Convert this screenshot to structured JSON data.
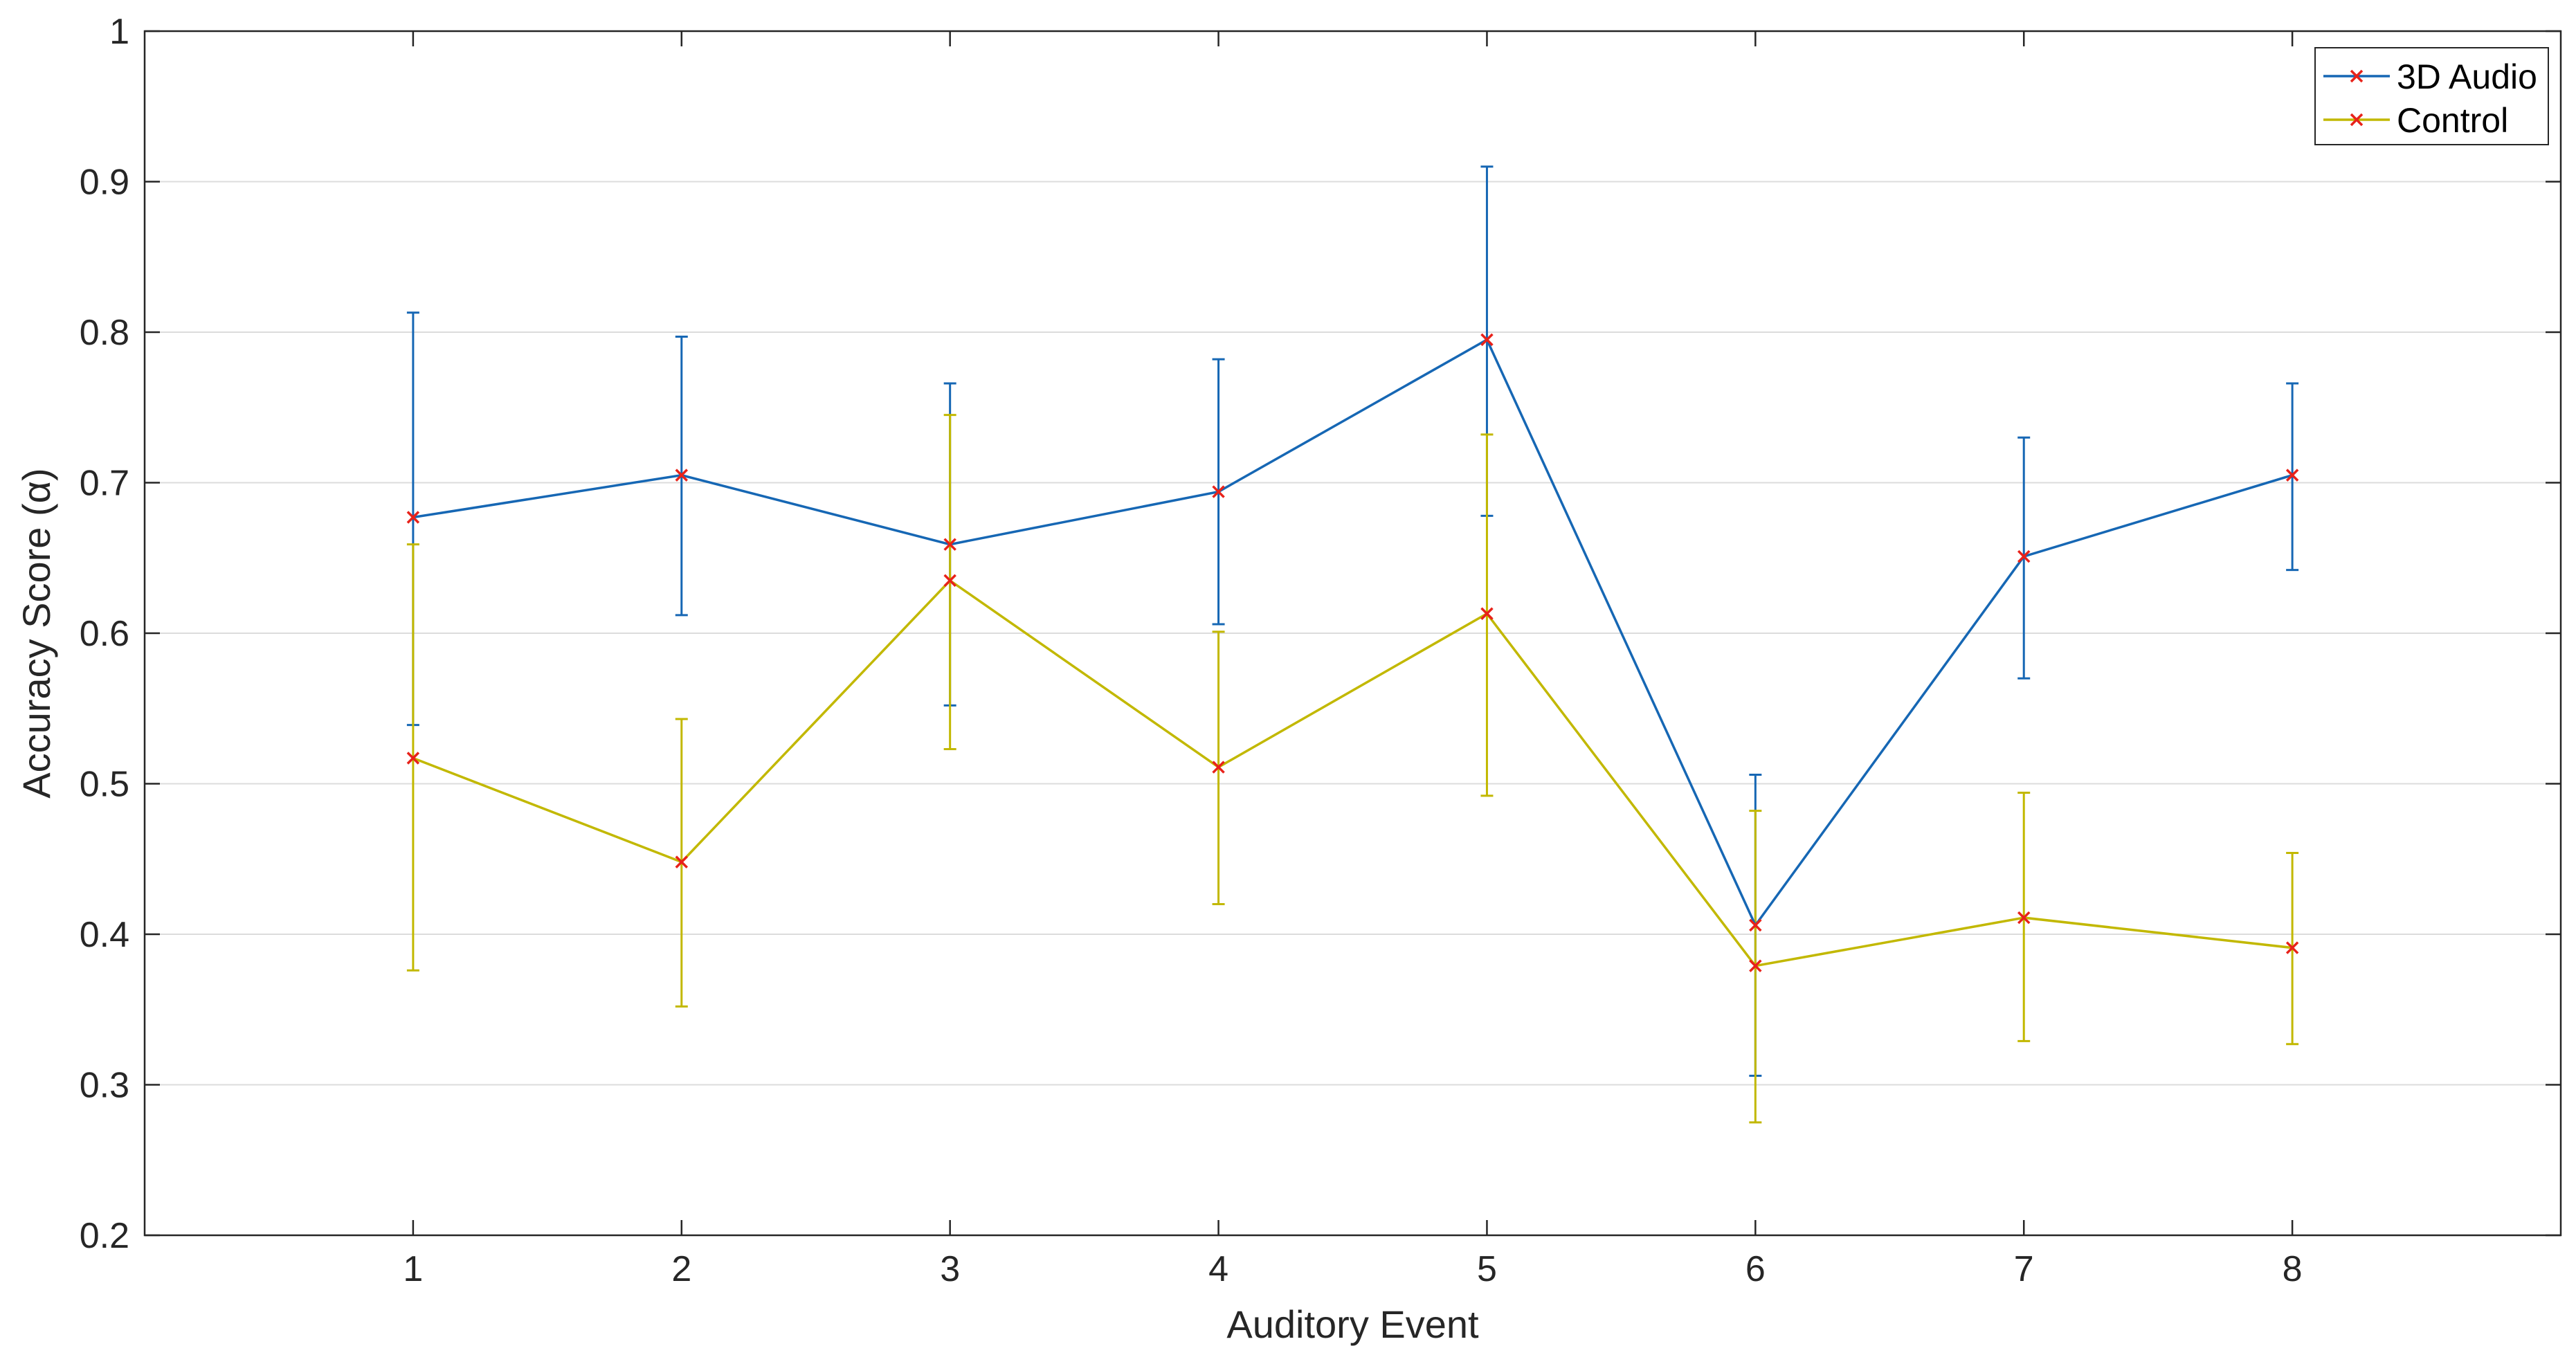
{
  "chart_data": {
    "type": "line",
    "title": "",
    "xlabel": "Auditory Event",
    "ylabel": "Accuracy Score (α)",
    "x": [
      1,
      2,
      3,
      4,
      5,
      6,
      7,
      8
    ],
    "xlim": [
      0,
      9
    ],
    "ylim": [
      0.2,
      1
    ],
    "xticks": [
      "1",
      "2",
      "3",
      "4",
      "5",
      "6",
      "7",
      "8"
    ],
    "yticks": [
      "0.2",
      "0.3",
      "0.4",
      "0.5",
      "0.6",
      "0.7",
      "0.8",
      "0.9",
      "1"
    ],
    "grid": "horizontal",
    "legend_position": "top-right",
    "marker": "x",
    "marker_color": "#e8221a",
    "series": [
      {
        "name": "3D Audio",
        "color": "#1667b4",
        "values": [
          0.677,
          0.705,
          0.659,
          0.694,
          0.795,
          0.406,
          0.651,
          0.705
        ],
        "lower": [
          0.539,
          0.612,
          0.552,
          0.606,
          0.678,
          0.306,
          0.57,
          0.642
        ],
        "upper": [
          0.813,
          0.797,
          0.766,
          0.782,
          0.91,
          0.506,
          0.73,
          0.766
        ]
      },
      {
        "name": "Control",
        "color": "#c2b800",
        "values": [
          0.517,
          0.448,
          0.635,
          0.511,
          0.613,
          0.379,
          0.411,
          0.391
        ],
        "lower": [
          0.376,
          0.352,
          0.523,
          0.42,
          0.492,
          0.275,
          0.329,
          0.327
        ],
        "upper": [
          0.659,
          0.543,
          0.745,
          0.601,
          0.732,
          0.482,
          0.494,
          0.454
        ]
      }
    ]
  }
}
